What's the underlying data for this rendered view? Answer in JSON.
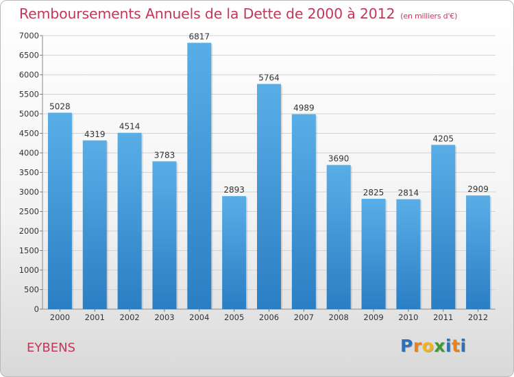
{
  "chart_data": {
    "type": "bar",
    "title": "Remboursements Annuels de la Dette de 2000 à 2012",
    "unit_note": "(en milliers d'€)",
    "categories": [
      "2000",
      "2001",
      "2002",
      "2003",
      "2004",
      "2005",
      "2006",
      "2007",
      "2008",
      "2009",
      "2010",
      "2011",
      "2012"
    ],
    "values": [
      5028,
      4319,
      4514,
      3783,
      6817,
      2893,
      5764,
      4989,
      3690,
      2825,
      2814,
      4205,
      2909
    ],
    "ylim": [
      0,
      7000
    ],
    "yticks": [
      0,
      500,
      1000,
      1500,
      2000,
      2500,
      3000,
      3500,
      4000,
      4500,
      5000,
      5500,
      6000,
      6500,
      7000
    ],
    "grid": true,
    "xlabel": "",
    "ylabel": "",
    "colors": {
      "bar_top": "#5aaee7",
      "bar_bottom": "#2a7ec3",
      "title": "#c4365a",
      "grid": "#d2d2d2"
    }
  },
  "commune": "EYBENS",
  "logo": {
    "text": "Proxiti",
    "letters": [
      "P",
      "r",
      "o",
      "x",
      "i",
      "t",
      "i"
    ],
    "letter_colors": [
      "#2f6fb6",
      "#e8821e",
      "#f2b418",
      "#3c9a32",
      "#2f6fb6",
      "#e8821e",
      "#2f6fb6"
    ]
  }
}
